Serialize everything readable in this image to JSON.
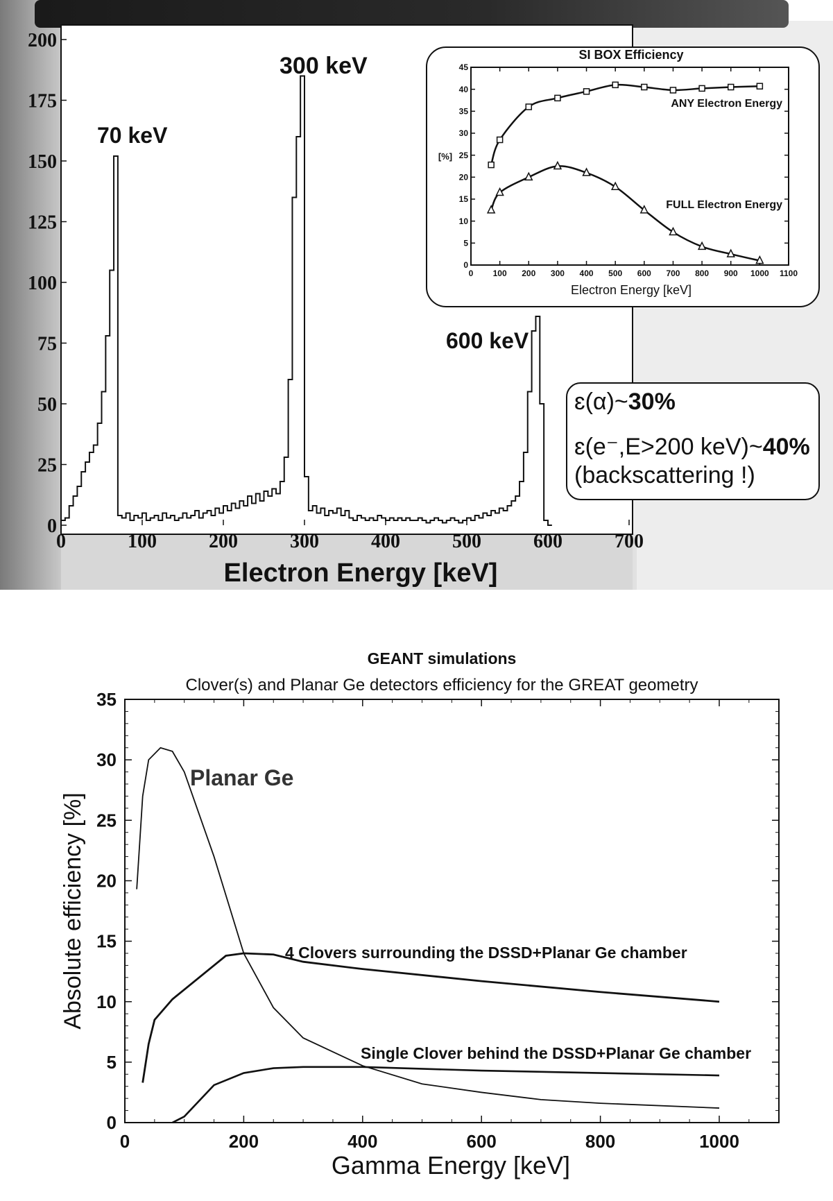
{
  "chart_data": [
    {
      "type": "histogram",
      "title": "",
      "xlabel": "Electron Energy [keV]",
      "ylabel": "",
      "xlim": [
        0,
        705
      ],
      "ylim": [
        0,
        200
      ],
      "xticks": [
        0,
        100,
        200,
        300,
        400,
        500,
        600,
        700
      ],
      "yticks": [
        0,
        25,
        50,
        75,
        100,
        125,
        150,
        175,
        200
      ],
      "x_start": 0,
      "bin_width": 5,
      "counts": [
        2,
        3,
        8,
        12,
        16,
        22,
        26,
        30,
        33,
        42,
        55,
        78,
        105,
        152,
        4,
        3,
        5,
        2,
        4,
        3,
        5,
        2,
        3,
        4,
        2,
        5,
        3,
        4,
        2,
        3,
        5,
        3,
        4,
        6,
        3,
        5,
        6,
        4,
        7,
        5,
        8,
        6,
        9,
        7,
        10,
        8,
        12,
        9,
        13,
        10,
        14,
        12,
        15,
        13,
        18,
        28,
        60,
        135,
        160,
        185,
        20,
        6,
        8,
        5,
        7,
        4,
        6,
        5,
        7,
        4,
        6,
        3,
        2,
        4,
        3,
        2,
        3,
        2,
        4,
        3,
        2,
        3,
        2,
        3,
        2,
        3,
        2,
        2,
        3,
        2,
        1,
        2,
        3,
        2,
        1,
        2,
        3,
        2,
        1,
        2,
        3,
        2,
        4,
        3,
        5,
        4,
        6,
        5,
        7,
        6,
        8,
        10,
        12,
        18,
        30,
        55,
        80,
        86,
        50,
        2,
        0
      ],
      "annotations": [
        "70 keV",
        "300 keV",
        "600 keV"
      ]
    },
    {
      "type": "line",
      "title": "SI BOX Efficiency",
      "xlabel": "Electron Energy [keV]",
      "ylabel": "[%]",
      "xlim": [
        0,
        1100
      ],
      "ylim": [
        0,
        45
      ],
      "xticks": [
        0,
        100,
        200,
        300,
        400,
        500,
        600,
        700,
        800,
        900,
        1000,
        1100
      ],
      "yticks": [
        0,
        5,
        10,
        15,
        20,
        25,
        30,
        35,
        40,
        45
      ],
      "series": [
        {
          "name": "ANY Electron Energy",
          "marker": "square",
          "x": [
            70,
            100,
            200,
            300,
            400,
            500,
            600,
            700,
            800,
            900,
            1000
          ],
          "y": [
            22.8,
            28.5,
            36,
            38,
            39.5,
            41,
            40.5,
            39.8,
            40.2,
            40.5,
            40.7
          ]
        },
        {
          "name": "FULL Electron Energy",
          "marker": "triangle",
          "x": [
            70,
            100,
            200,
            300,
            400,
            500,
            600,
            700,
            800,
            900,
            1000
          ],
          "y": [
            12.5,
            16.5,
            20,
            22.5,
            21,
            17.8,
            12.5,
            7.5,
            4.2,
            2.5,
            1.0
          ]
        }
      ]
    },
    {
      "type": "line",
      "title": "GEANT simulations",
      "subtitle": "Clover(s) and Planar Ge  detectors efficiency for the GREAT geometry",
      "xlabel": "Gamma Energy [keV]",
      "ylabel": "Absolute efficiency [%]",
      "xlim": [
        0,
        1100
      ],
      "ylim": [
        0,
        35
      ],
      "xticks": [
        0,
        200,
        400,
        600,
        800,
        1000
      ],
      "yticks": [
        0,
        5,
        10,
        15,
        20,
        25,
        30,
        35
      ],
      "series": [
        {
          "name": "Planar Ge",
          "x": [
            20,
            30,
            40,
            60,
            80,
            100,
            150,
            200,
            250,
            300,
            400,
            500,
            600,
            700,
            800,
            1000
          ],
          "y": [
            19.3,
            27,
            30,
            31,
            30.7,
            29,
            22,
            14,
            9.5,
            7,
            4.7,
            3.2,
            2.5,
            1.9,
            1.6,
            1.2
          ]
        },
        {
          "name": "4 Clovers surrounding the DSSD+Planar Ge chamber",
          "x": [
            30,
            40,
            50,
            80,
            100,
            150,
            170,
            200,
            250,
            300,
            400,
            600,
            800,
            1000
          ],
          "y": [
            3.3,
            6.5,
            8.5,
            10.2,
            11,
            13,
            13.8,
            14,
            13.9,
            13.3,
            12.7,
            11.7,
            10.8,
            10
          ]
        },
        {
          "name": "Single Clover behind the DSSD+Planar Ge chamber",
          "x": [
            80,
            100,
            150,
            200,
            250,
            300,
            400,
            600,
            800,
            1000
          ],
          "y": [
            0,
            0.5,
            3.1,
            4.1,
            4.5,
            4.6,
            4.6,
            4.3,
            4.1,
            3.9
          ]
        }
      ]
    }
  ],
  "textbox": {
    "line1_prefix": "ɛ(α)~",
    "line1_value": "30%",
    "line2_prefix": "ɛ(e⁻,E>200 keV)~",
    "line2_value": "40%",
    "line3": "(backscattering !)"
  },
  "colors": {
    "ink": "#111111",
    "paper": "#ffffff",
    "scan_gray": "#8a8a8a"
  }
}
